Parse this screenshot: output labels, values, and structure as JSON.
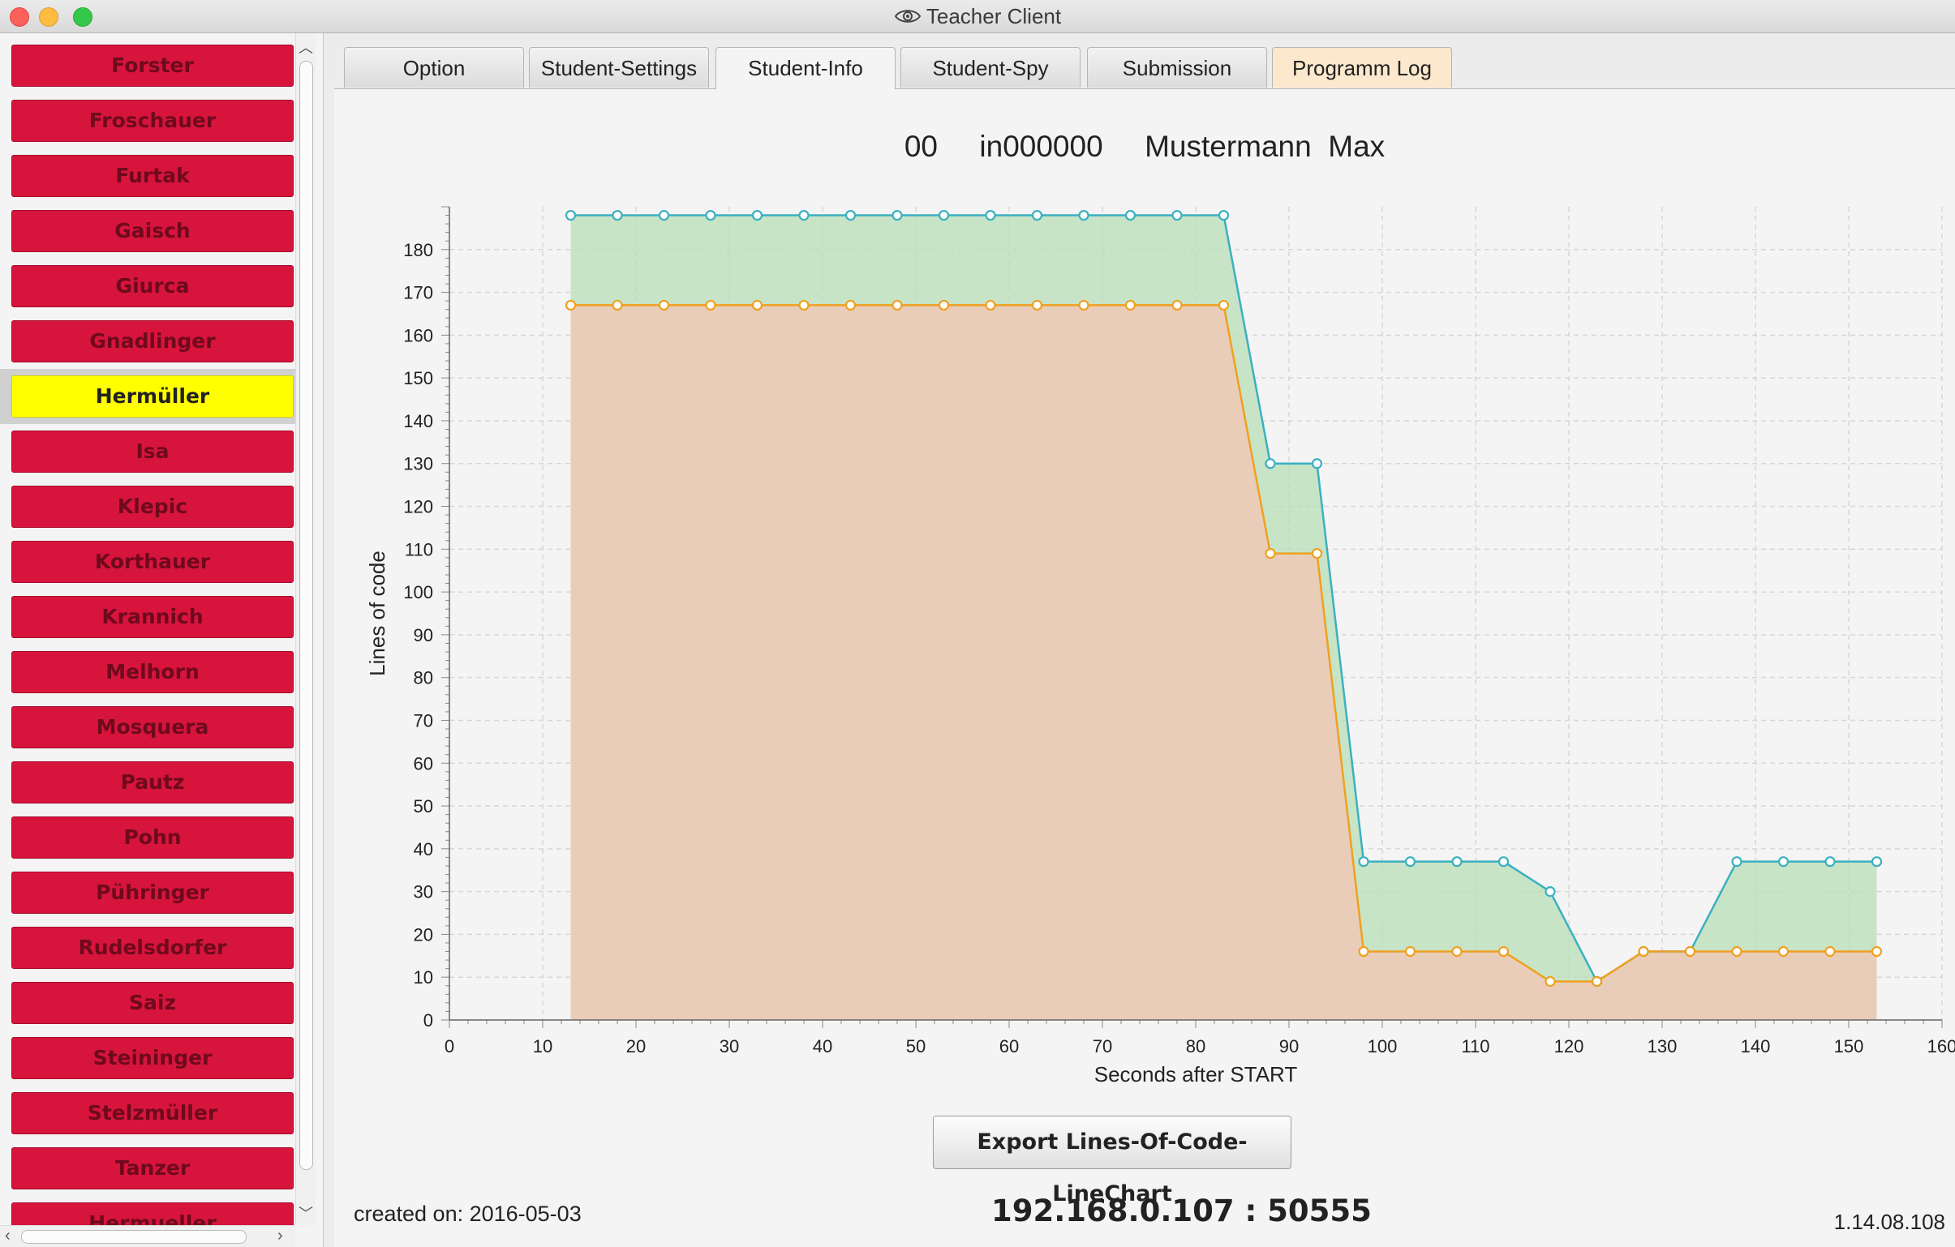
{
  "window": {
    "title": "Teacher Client"
  },
  "colors": {
    "student_button": "#d7143c",
    "selected_student": "#ffff00",
    "series_teal": "#3bb0c0",
    "series_orange": "#f0a020",
    "area_green": "#b8dfb8",
    "area_red": "#f4c6b4"
  },
  "students": [
    "Forster",
    "Froschauer",
    "Furtak",
    "Gaisch",
    "Giurca",
    "Gnadlinger",
    "Hermüller",
    "Isa",
    "Klepic",
    "Korthauer",
    "Krannich",
    "Melhorn",
    "Mosquera",
    "Pautz",
    "Pohn",
    "Pühringer",
    "Rudelsdorfer",
    "Saiz",
    "Steininger",
    "Stelzmüller",
    "Tanzer",
    "Hermueller"
  ],
  "selected_student": "Hermüller",
  "tabs": [
    {
      "label": "Option"
    },
    {
      "label": "Student-Settings"
    },
    {
      "label": "Student-Info",
      "active": true
    },
    {
      "label": "Student-Spy"
    },
    {
      "label": "Submission"
    },
    {
      "label": "Programm Log"
    }
  ],
  "student_info": {
    "number": "00",
    "id": "in000000",
    "lastname": "Mustermann",
    "firstname": "Max"
  },
  "chart_data": {
    "type": "area",
    "xlabel": "Seconds after START",
    "ylabel": "Lines of code",
    "xlim": [
      0,
      160
    ],
    "ylim": [
      0,
      190
    ],
    "xticks": [
      0,
      10,
      20,
      30,
      40,
      50,
      60,
      70,
      80,
      90,
      100,
      110,
      120,
      130,
      140,
      150,
      160
    ],
    "yticks": [
      0,
      10,
      20,
      30,
      40,
      50,
      60,
      70,
      80,
      90,
      100,
      110,
      120,
      130,
      140,
      150,
      160,
      170,
      180
    ],
    "grid": true,
    "series": [
      {
        "color": "#3bb0c0",
        "fill": "#b8dfb8",
        "x": [
          13,
          18,
          23,
          28,
          33,
          38,
          43,
          48,
          53,
          58,
          63,
          68,
          73,
          78,
          83,
          88,
          93,
          98,
          103,
          108,
          113,
          118,
          123,
          128,
          133,
          138,
          143,
          148,
          153
        ],
        "y": [
          188,
          188,
          188,
          188,
          188,
          188,
          188,
          188,
          188,
          188,
          188,
          188,
          188,
          188,
          188,
          130,
          130,
          37,
          37,
          37,
          37,
          30,
          9,
          16,
          16,
          37,
          37,
          37,
          37
        ]
      },
      {
        "color": "#f0a020",
        "fill": "#f4c6b4",
        "x": [
          13,
          18,
          23,
          28,
          33,
          38,
          43,
          48,
          53,
          58,
          63,
          68,
          73,
          78,
          83,
          88,
          93,
          98,
          103,
          108,
          113,
          118,
          123,
          128,
          133,
          138,
          143,
          148,
          153
        ],
        "y": [
          167,
          167,
          167,
          167,
          167,
          167,
          167,
          167,
          167,
          167,
          167,
          167,
          167,
          167,
          167,
          109,
          109,
          16,
          16,
          16,
          16,
          9,
          9,
          16,
          16,
          16,
          16,
          16,
          16
        ]
      }
    ]
  },
  "export_button": "Export Lines-Of-Code-LineChart",
  "created_on": "created on: 2016-05-03",
  "server_address": "192.168.0.107 : 50555",
  "version": "1.14.08.108"
}
